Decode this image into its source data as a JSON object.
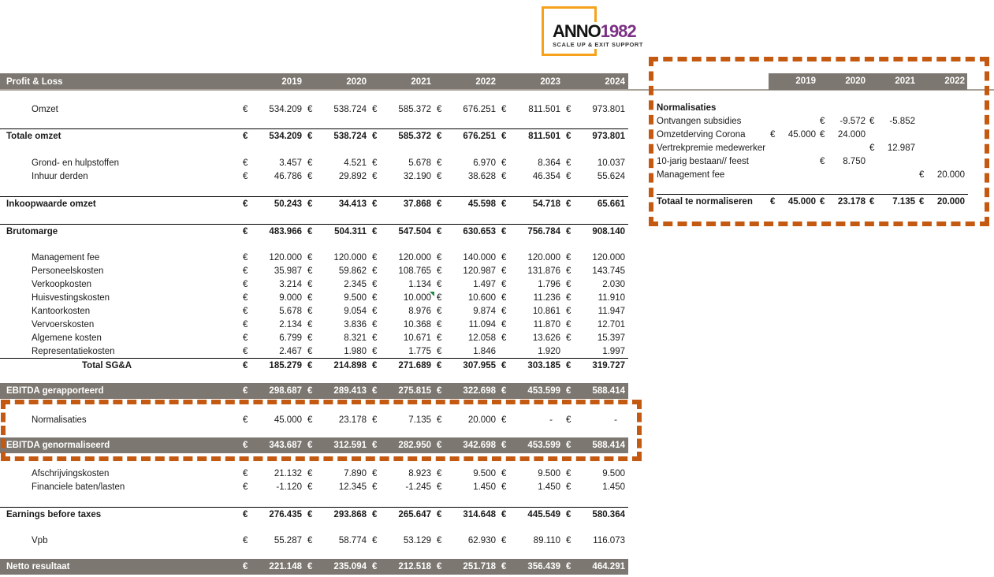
{
  "logo": {
    "brand": "ANNO",
    "brand_year": "1982",
    "tagline": "SCALE UP & EXIT SUPPORT"
  },
  "colors": {
    "header_gray": "#7c7770",
    "dashed_border_orange": "#c45911",
    "logo_border_orange": "#f6a21d",
    "logo_year_purple": "#7c3184",
    "comment_marker_green": "#1f8a44"
  },
  "currency_symbol": "€",
  "main_table": {
    "title": "Profit & Loss",
    "years": [
      "2019",
      "2020",
      "2021",
      "2022",
      "2023",
      "2024"
    ],
    "rows": [
      {
        "type": "spacer",
        "h": 16
      },
      {
        "type": "item",
        "label": "Omzet",
        "values": [
          "534.209",
          "538.724",
          "585.372",
          "676.251",
          "811.501",
          "973.801"
        ]
      },
      {
        "type": "spacer",
        "h": 16
      },
      {
        "type": "total",
        "label": "Totale omzet",
        "values": [
          "534.209",
          "538.724",
          "585.372",
          "676.251",
          "811.501",
          "973.801"
        ]
      },
      {
        "type": "spacer",
        "h": 17
      },
      {
        "type": "item",
        "label": "Grond- en hulpstoffen",
        "values": [
          "3.457",
          "4.521",
          "5.678",
          "6.970",
          "8.364",
          "10.037"
        ]
      },
      {
        "type": "item",
        "label": "Inhuur derden",
        "values": [
          "46.786",
          "29.892",
          "32.190",
          "38.628",
          "46.354",
          "55.624"
        ]
      },
      {
        "type": "spacer",
        "h": 17
      },
      {
        "type": "total",
        "label": "Inkoopwaarde omzet",
        "values": [
          "50.243",
          "34.413",
          "37.868",
          "45.598",
          "54.718",
          "65.661"
        ]
      },
      {
        "type": "spacer",
        "h": 17
      },
      {
        "type": "total",
        "label": "Brutomarge",
        "values": [
          "483.966",
          "504.311",
          "547.504",
          "630.653",
          "756.784",
          "908.140"
        ]
      },
      {
        "type": "spacer",
        "h": 16
      },
      {
        "type": "item",
        "label": "Management fee",
        "values": [
          "120.000",
          "120.000",
          "120.000",
          "140.000",
          "120.000",
          "120.000"
        ]
      },
      {
        "type": "item",
        "label": "Personeelskosten",
        "values": [
          "35.987",
          "59.862",
          "108.765",
          "120.987",
          "131.876",
          "143.745"
        ]
      },
      {
        "type": "item",
        "label": "Verkoopkosten",
        "values": [
          "3.214",
          "2.345",
          "1.134",
          "1.497",
          "1.796",
          "2.030"
        ]
      },
      {
        "type": "item",
        "label": "Huisvestingskosten",
        "values": [
          "9.000",
          "9.500",
          "10.000",
          "10.600",
          "11.236",
          "11.910"
        ],
        "comment_col": 2
      },
      {
        "type": "item",
        "label": "Kantoorkosten",
        "values": [
          "5.678",
          "9.054",
          "8.976",
          "9.874",
          "10.861",
          "11.947"
        ]
      },
      {
        "type": "item",
        "label": "Vervoerskosten",
        "values": [
          "2.134",
          "3.836",
          "10.368",
          "11.094",
          "11.870",
          "12.701"
        ]
      },
      {
        "type": "item",
        "label": "Algemene kosten",
        "values": [
          "6.799",
          "8.321",
          "10.671",
          "12.058",
          "13.626",
          "15.397"
        ]
      },
      {
        "type": "item",
        "label": "Representatiekosten",
        "values": [
          "2.467",
          "1.980",
          "1.775",
          "1.846",
          "1.920",
          "1.997"
        ],
        "euros": [
          true,
          true,
          true,
          true,
          false,
          false
        ]
      },
      {
        "type": "total",
        "label": "Total SG&A",
        "values": [
          "185.279",
          "214.898",
          "271.689",
          "307.955",
          "303.185",
          "319.727"
        ],
        "indent": 2
      },
      {
        "type": "spacer",
        "h": 14
      },
      {
        "type": "band",
        "label": "EBITDA gerapporteerd",
        "values": [
          "298.687",
          "289.413",
          "275.815",
          "322.698",
          "453.599",
          "588.414"
        ]
      },
      {
        "type": "spacer",
        "h": 18
      },
      {
        "type": "item",
        "label": "Normalisaties",
        "values": [
          "45.000",
          "23.178",
          "7.135",
          "20.000",
          "-",
          "-"
        ]
      },
      {
        "type": "spacer",
        "h": 14
      },
      {
        "type": "band",
        "label": "EBITDA genormaliseerd",
        "values": [
          "343.687",
          "312.591",
          "282.950",
          "342.698",
          "453.599",
          "588.414"
        ]
      },
      {
        "type": "spacer",
        "h": 17
      },
      {
        "type": "item",
        "label": "Afschrijvingskosten",
        "values": [
          "21.132",
          "7.890",
          "8.923",
          "9.500",
          "9.500",
          "9.500"
        ]
      },
      {
        "type": "item",
        "label": "Financiele baten/lasten",
        "values": [
          "-1.120",
          "12.345",
          "-1.245",
          "1.450",
          "1.450",
          "1.450"
        ]
      },
      {
        "type": "spacer",
        "h": 17
      },
      {
        "type": "total",
        "label": "Earnings before taxes",
        "values": [
          "276.435",
          "293.868",
          "265.647",
          "314.648",
          "445.549",
          "580.364"
        ]
      },
      {
        "type": "spacer",
        "h": 16
      },
      {
        "type": "item",
        "label": "Vpb",
        "values": [
          "55.287",
          "58.774",
          "53.129",
          "62.930",
          "89.110",
          "116.073"
        ]
      },
      {
        "type": "spacer",
        "h": 15
      },
      {
        "type": "band",
        "label": "Netto resultaat",
        "values": [
          "221.148",
          "235.094",
          "212.518",
          "251.718",
          "356.439",
          "464.291"
        ]
      }
    ]
  },
  "side_table": {
    "years": [
      "2019",
      "2020",
      "2021",
      "2022"
    ],
    "rows": [
      {
        "type": "spacer",
        "h": 14
      },
      {
        "type": "slabel",
        "label": "Normalisaties"
      },
      {
        "type": "item",
        "label": "Ontvangen subsidies",
        "values": [
          null,
          "-9.572",
          "-5.852",
          null
        ]
      },
      {
        "type": "item",
        "label": "Omzetderving Corona",
        "values": [
          "45.000",
          "24.000",
          null,
          null
        ]
      },
      {
        "type": "item",
        "label": "Vertrekpremie medewerker",
        "values": [
          null,
          null,
          "12.987",
          null
        ]
      },
      {
        "type": "item",
        "label": "10-jarig bestaan// feest",
        "values": [
          null,
          "8.750",
          null,
          null
        ]
      },
      {
        "type": "item",
        "label": "Management fee",
        "values": [
          null,
          null,
          null,
          "20.000"
        ]
      },
      {
        "type": "spacer",
        "h": 16
      },
      {
        "type": "total",
        "label": "Totaal te normaliseren",
        "values": [
          "45.000",
          "23.178",
          "7.135",
          "20.000"
        ]
      }
    ]
  }
}
